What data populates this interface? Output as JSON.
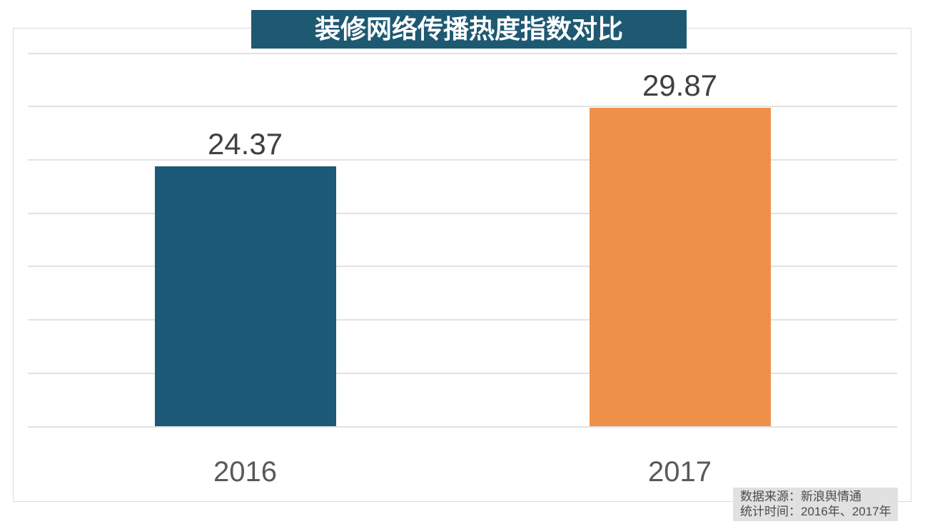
{
  "title": "装修网络传播热度指数对比",
  "source": {
    "line1": "数据来源：新浪舆情通",
    "line2": "统计时间：2016年、2017年"
  },
  "colors": {
    "title_bg": "#1E5972",
    "title_text": "#FFFFFF",
    "grid": "#E2E2E2",
    "plot_border": "#DBDBDB",
    "value_label": "#404040",
    "axis_label": "#595959",
    "source_bg": "#E1E1E1",
    "source_text": "#4C4C4C"
  },
  "chart_data": {
    "type": "bar",
    "title": "装修网络传播热度指数对比",
    "categories": [
      "2016",
      "2017"
    ],
    "values": [
      24.37,
      29.87
    ],
    "value_labels": [
      "24.37",
      "29.87"
    ],
    "bar_colors": [
      "#1C5A77",
      "#EF904A"
    ],
    "xlabel": "",
    "ylabel": "",
    "ylim": [
      0,
      35
    ],
    "grid_step": 5,
    "grid": "on",
    "y_tick_labels_shown": false,
    "legend": "none",
    "annotations": [
      "数据来源：新浪舆情通",
      "统计时间：2016年、2017年"
    ]
  }
}
